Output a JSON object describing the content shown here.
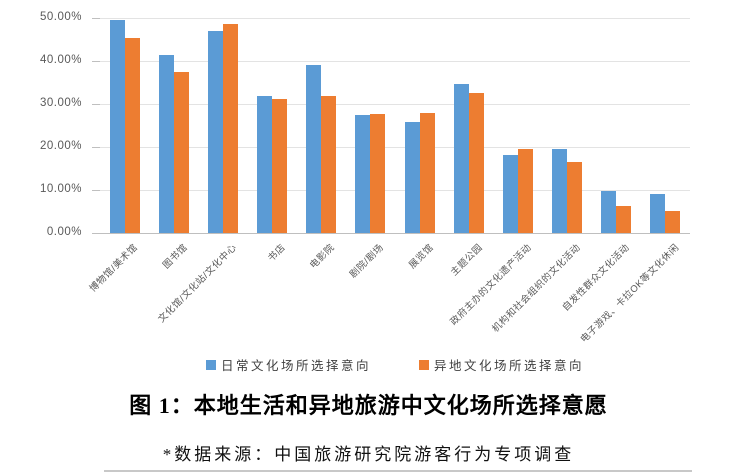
{
  "chart_data": {
    "type": "bar",
    "categories": [
      "博物馆/美术馆",
      "图书馆",
      "文化馆/文化站/文化中心",
      "书店",
      "电影院",
      "剧院/剧场",
      "展览馆",
      "主题公园",
      "政府主办的文化遗产活动",
      "机构和社会组织的文化活动",
      "自发性群众文化活动",
      "电子游戏、卡拉OK等文化休闲"
    ],
    "series": [
      {
        "name": "日常文化场所选择意向",
        "color": "#5B9BD5",
        "values": [
          49.5,
          41.4,
          46.8,
          31.9,
          39.0,
          27.4,
          25.7,
          34.6,
          18.1,
          19.5,
          9.8,
          9.1
        ]
      },
      {
        "name": "异地文化场所选择意向",
        "color": "#ED7D31",
        "values": [
          45.3,
          37.4,
          48.5,
          31.1,
          31.8,
          27.6,
          27.8,
          32.4,
          19.4,
          16.5,
          6.3,
          5.1
        ]
      }
    ],
    "ylim": [
      0,
      50
    ],
    "ytick_step": 10,
    "ytick_labels": [
      "0.00%",
      "10.00%",
      "20.00%",
      "30.00%",
      "40.00%",
      "50.00%"
    ],
    "grid": true,
    "legend_position": "bottom",
    "title": "图 1：本地生活和异地旅游中文化场所选择意愿"
  },
  "caption": {
    "title": "图 1：本地生活和异地旅游中文化场所选择意愿",
    "source": "*数据来源：中国旅游研究院游客行为专项调查"
  },
  "colors": {
    "series_blue": "#5B9BD5",
    "series_orange": "#ED7D31",
    "gridline": "#e3e3e3",
    "axis_text": "#595959"
  }
}
